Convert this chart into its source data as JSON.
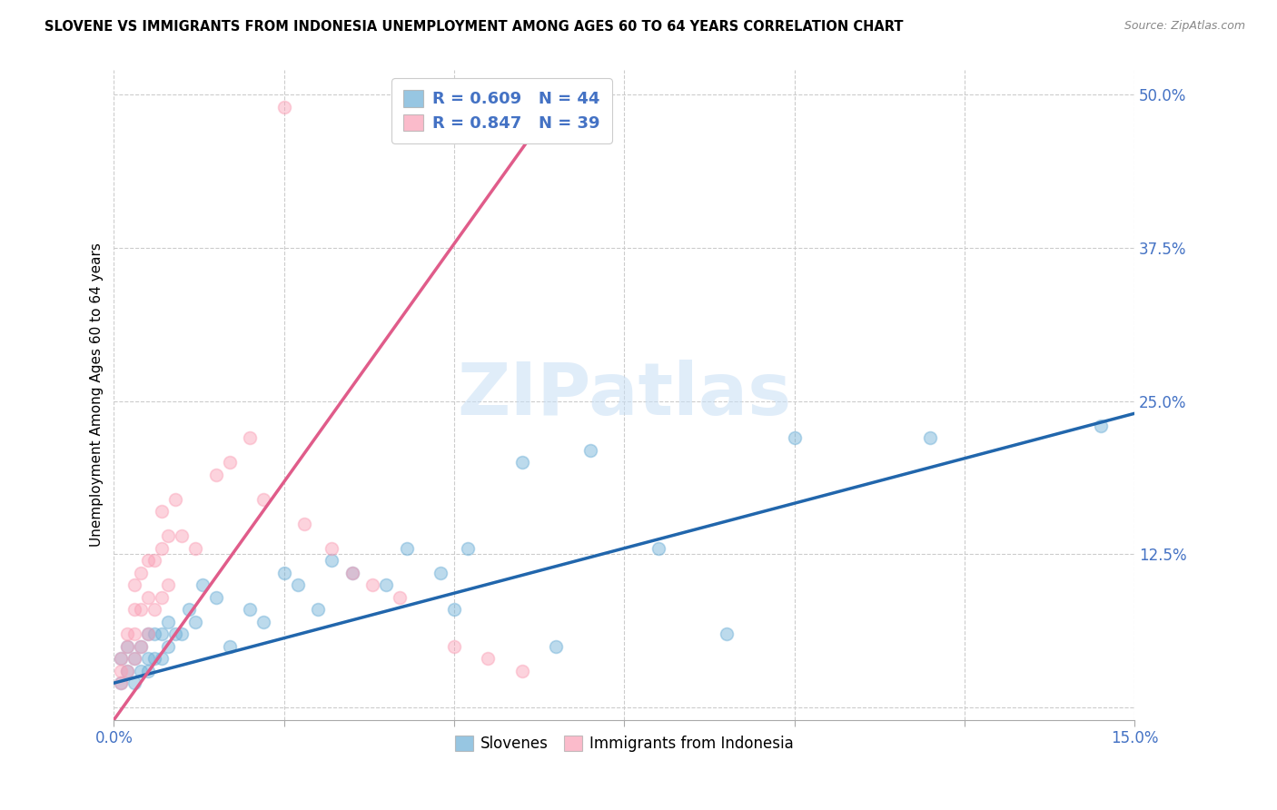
{
  "title": "SLOVENE VS IMMIGRANTS FROM INDONESIA UNEMPLOYMENT AMONG AGES 60 TO 64 YEARS CORRELATION CHART",
  "source": "Source: ZipAtlas.com",
  "ylabel": "Unemployment Among Ages 60 to 64 years",
  "xlim": [
    0.0,
    0.15
  ],
  "ylim": [
    -0.01,
    0.52
  ],
  "xticks": [
    0.0,
    0.025,
    0.05,
    0.075,
    0.1,
    0.125,
    0.15
  ],
  "ytick_positions": [
    0.0,
    0.125,
    0.25,
    0.375,
    0.5
  ],
  "ytick_labels": [
    "",
    "12.5%",
    "25.0%",
    "37.5%",
    "50.0%"
  ],
  "slovene_color": "#6baed6",
  "indonesia_color": "#fa9fb5",
  "slovene_line_color": "#2166ac",
  "indonesia_line_color": "#e05c8a",
  "legend_R1": "R = 0.609",
  "legend_N1": "N = 44",
  "legend_R2": "R = 0.847",
  "legend_N2": "N = 39",
  "legend_label1": "Slovenes",
  "legend_label2": "Immigrants from Indonesia",
  "watermark": "ZIPatlas",
  "slovene_x": [
    0.001,
    0.001,
    0.002,
    0.002,
    0.003,
    0.003,
    0.004,
    0.004,
    0.005,
    0.005,
    0.005,
    0.006,
    0.006,
    0.007,
    0.007,
    0.008,
    0.008,
    0.009,
    0.01,
    0.011,
    0.012,
    0.013,
    0.015,
    0.017,
    0.02,
    0.022,
    0.025,
    0.027,
    0.03,
    0.032,
    0.035,
    0.04,
    0.043,
    0.048,
    0.05,
    0.052,
    0.06,
    0.065,
    0.07,
    0.08,
    0.09,
    0.1,
    0.12,
    0.145
  ],
  "slovene_y": [
    0.02,
    0.04,
    0.03,
    0.05,
    0.02,
    0.04,
    0.03,
    0.05,
    0.03,
    0.04,
    0.06,
    0.04,
    0.06,
    0.04,
    0.06,
    0.05,
    0.07,
    0.06,
    0.06,
    0.08,
    0.07,
    0.1,
    0.09,
    0.05,
    0.08,
    0.07,
    0.11,
    0.1,
    0.08,
    0.12,
    0.11,
    0.1,
    0.13,
    0.11,
    0.08,
    0.13,
    0.2,
    0.05,
    0.21,
    0.13,
    0.06,
    0.22,
    0.22,
    0.23
  ],
  "indonesia_x": [
    0.001,
    0.001,
    0.001,
    0.002,
    0.002,
    0.002,
    0.003,
    0.003,
    0.003,
    0.003,
    0.004,
    0.004,
    0.004,
    0.005,
    0.005,
    0.005,
    0.006,
    0.006,
    0.007,
    0.007,
    0.007,
    0.008,
    0.008,
    0.009,
    0.01,
    0.012,
    0.015,
    0.017,
    0.02,
    0.022,
    0.025,
    0.028,
    0.032,
    0.035,
    0.038,
    0.042,
    0.05,
    0.055,
    0.06
  ],
  "indonesia_y": [
    0.02,
    0.03,
    0.04,
    0.03,
    0.05,
    0.06,
    0.04,
    0.06,
    0.08,
    0.1,
    0.05,
    0.08,
    0.11,
    0.06,
    0.09,
    0.12,
    0.08,
    0.12,
    0.09,
    0.13,
    0.16,
    0.1,
    0.14,
    0.17,
    0.14,
    0.13,
    0.19,
    0.2,
    0.22,
    0.17,
    0.49,
    0.15,
    0.13,
    0.11,
    0.1,
    0.09,
    0.05,
    0.04,
    0.03
  ],
  "slovene_line_x": [
    0.0,
    0.15
  ],
  "slovene_line_y": [
    0.02,
    0.24
  ],
  "indonesia_line_x": [
    0.0,
    0.065
  ],
  "indonesia_line_y": [
    -0.01,
    0.495
  ]
}
